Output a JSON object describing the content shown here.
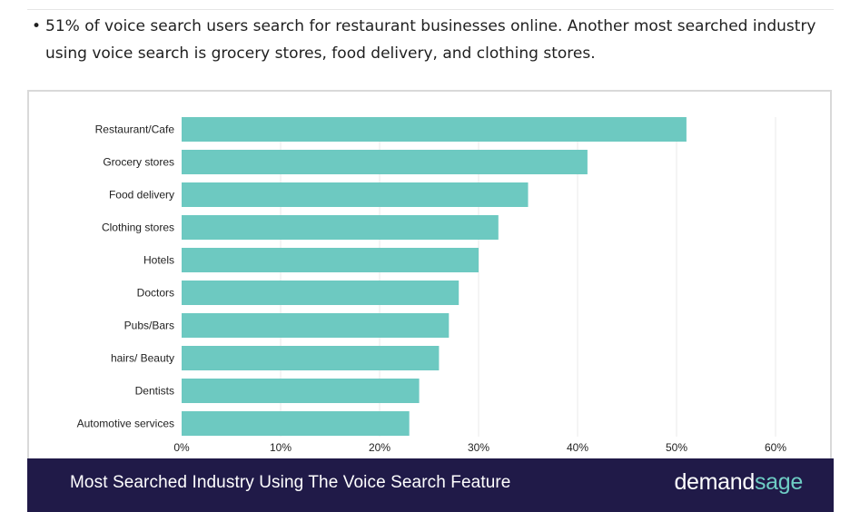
{
  "article": {
    "bullet_text": "51% of voice search users search for restaurant businesses online. Another most searched industry using voice search is grocery stores, food delivery, and clothing stores."
  },
  "footer": {
    "title": "Most Searched Industry Using The Voice Search Feature",
    "brand_part1": "demand",
    "brand_part2": "sage"
  },
  "colors": {
    "bar": "#6dc9c1",
    "grid": "#e8e8e8",
    "footer_bg": "#201a48",
    "brand_accent": "#6ecdc4"
  },
  "chart_data": {
    "type": "bar",
    "orientation": "horizontal",
    "categories": [
      "Restaurant/Cafe",
      "Grocery stores",
      "Food delivery",
      "Clothing stores",
      "Hotels",
      "Doctors",
      "Pubs/Bars",
      "hairs/ Beauty",
      "Dentists",
      "Automotive services"
    ],
    "values": [
      51,
      41,
      35,
      32,
      30,
      28,
      27,
      26,
      24,
      23
    ],
    "unit": "%",
    "xlim": [
      0,
      60
    ],
    "xticks": [
      0,
      10,
      20,
      30,
      40,
      50,
      60
    ],
    "xtick_labels": [
      "0%",
      "10%",
      "20%",
      "30%",
      "40%",
      "50%",
      "60%"
    ],
    "grid": true,
    "title": "",
    "xlabel": "",
    "ylabel": ""
  }
}
